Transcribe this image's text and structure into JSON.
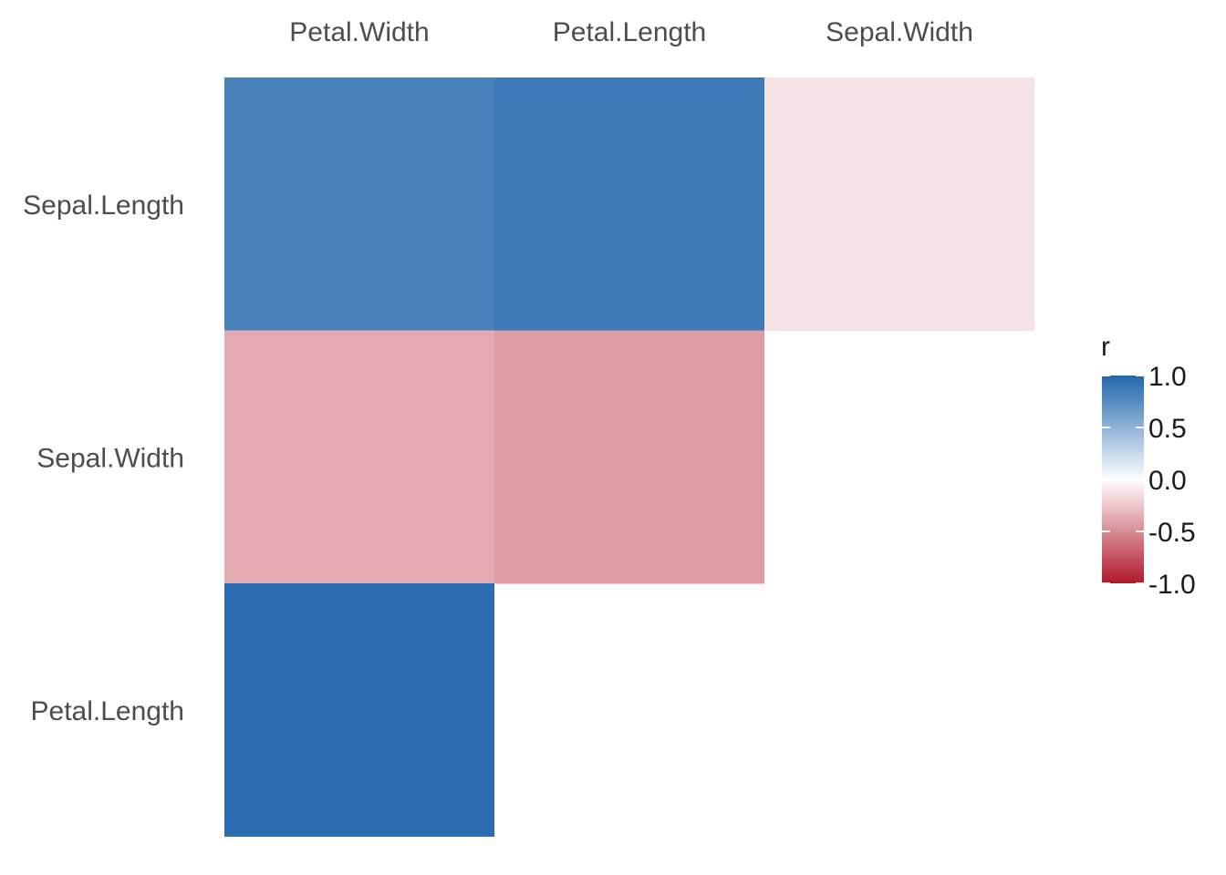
{
  "chart_data": {
    "type": "heatmap",
    "title": "",
    "x_categories": [
      "Petal.Width",
      "Petal.Length",
      "Sepal.Width"
    ],
    "y_categories": [
      "Sepal.Length",
      "Sepal.Width",
      "Petal.Length"
    ],
    "cells": [
      {
        "x": "Petal.Width",
        "y": "Sepal.Length",
        "value": 0.82
      },
      {
        "x": "Petal.Length",
        "y": "Sepal.Length",
        "value": 0.87
      },
      {
        "x": "Sepal.Width",
        "y": "Sepal.Length",
        "value": -0.12
      },
      {
        "x": "Petal.Width",
        "y": "Sepal.Width",
        "value": -0.37
      },
      {
        "x": "Petal.Length",
        "y": "Sepal.Width",
        "value": -0.43
      },
      {
        "x": "Petal.Width",
        "y": "Petal.Length",
        "value": 0.96
      }
    ],
    "legend": {
      "title": "r",
      "placement": "right",
      "ticks": [
        1.0,
        0.5,
        0.0,
        -0.5,
        -1.0
      ],
      "tick_labels": [
        "1.0",
        "0.5",
        "0.0",
        "-0.5",
        "-1.0"
      ],
      "range": [
        -1,
        1
      ]
    },
    "colors": {
      "high": "#2166ac",
      "mid": "#ffffff",
      "low": "#b2182b"
    },
    "grid": false
  }
}
